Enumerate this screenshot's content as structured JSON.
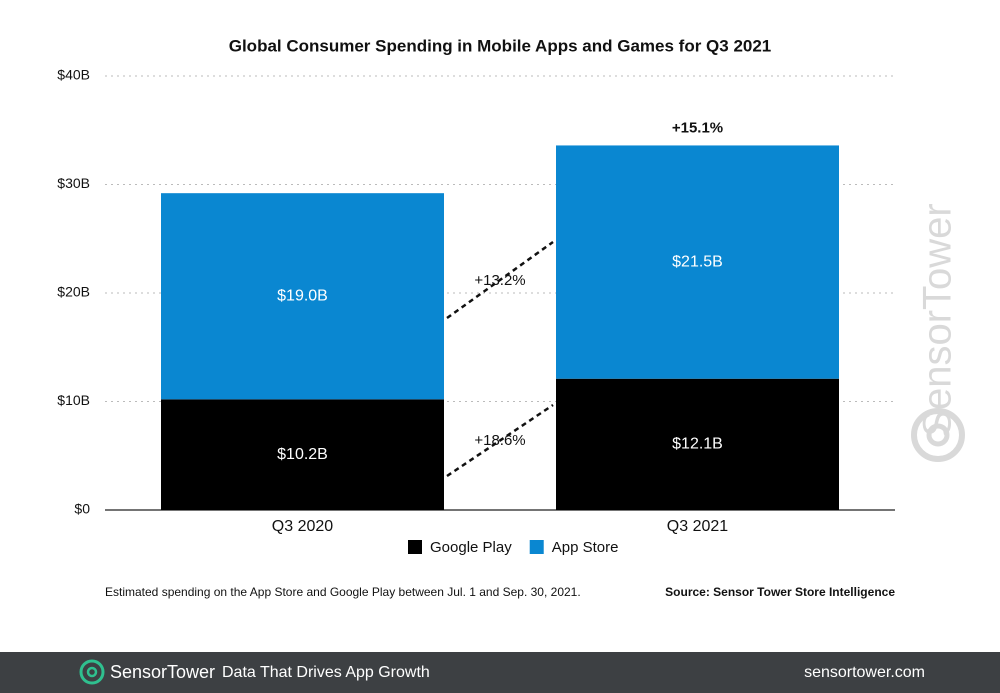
{
  "chart_data": {
    "type": "bar",
    "stacked": true,
    "title": "Global Consumer Spending in Mobile Apps and Games for Q3 2021",
    "categories": [
      "Q3 2020",
      "Q3 2021"
    ],
    "series": [
      {
        "name": "Google Play",
        "color": "#000000",
        "values": [
          10.2,
          12.1
        ],
        "value_labels": [
          "$10.2B",
          "$12.1B"
        ]
      },
      {
        "name": "App Store",
        "color": "#0a87d1",
        "values": [
          19.0,
          21.5
        ],
        "value_labels": [
          "$19.0B",
          "$21.5B"
        ]
      }
    ],
    "ylim": [
      0,
      40
    ],
    "yticks": [
      {
        "value": 0,
        "label": "$0"
      },
      {
        "value": 10,
        "label": "$10B"
      },
      {
        "value": 20,
        "label": "$20B"
      },
      {
        "value": 30,
        "label": "$30B"
      },
      {
        "value": 40,
        "label": "$40B"
      }
    ],
    "grid": true,
    "annotations": [
      "+15.1%",
      "+13.2%",
      "+18.6%"
    ],
    "footnote": "Estimated spending on the App Store and Google Play between Jul. 1 and Sep. 30, 2021.",
    "source": "Source: Sensor Tower Store Intelligence",
    "watermark": "SensorTower"
  },
  "footer": {
    "brand": "SensorTower",
    "tagline": "Data That Drives App Growth",
    "url": "sensortower.com"
  }
}
